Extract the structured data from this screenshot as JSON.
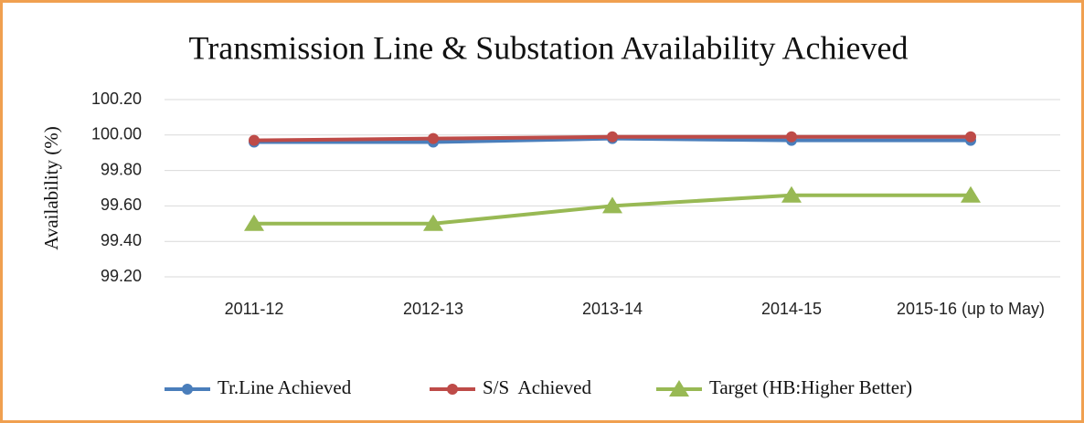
{
  "chart_data": {
    "type": "line",
    "title": "Transmission  Line & Substation Availability Achieved",
    "y_label": "Availability  (%)",
    "categories": [
      "2011-12",
      "2012-13",
      "2013-14",
      "2014-15",
      "2015-16 (up to May)"
    ],
    "series": [
      {
        "name": "Tr.Line Achieved",
        "color": "#4a7ebb",
        "marker": "circle",
        "values": [
          99.96,
          99.96,
          99.98,
          99.97,
          99.97
        ]
      },
      {
        "name": "S/S  Achieved",
        "color": "#be4b48",
        "marker": "circle",
        "values": [
          99.97,
          99.98,
          99.99,
          99.99,
          99.99
        ]
      },
      {
        "name": "Target (HB:Higher Better)",
        "color": "#98b954",
        "marker": "triangle",
        "values": [
          99.5,
          99.5,
          99.6,
          99.66,
          99.66
        ]
      }
    ],
    "ylim": [
      99.2,
      100.2
    ],
    "yticks": [
      {
        "value": 99.2,
        "label": "99.20"
      },
      {
        "value": 99.4,
        "label": "99.40"
      },
      {
        "value": 99.6,
        "label": "99.60"
      },
      {
        "value": 99.8,
        "label": "99.80"
      },
      {
        "value": 100.0,
        "label": "100.00"
      },
      {
        "value": 100.2,
        "label": "100.20"
      }
    ],
    "grid": true,
    "legend": "bottom"
  }
}
